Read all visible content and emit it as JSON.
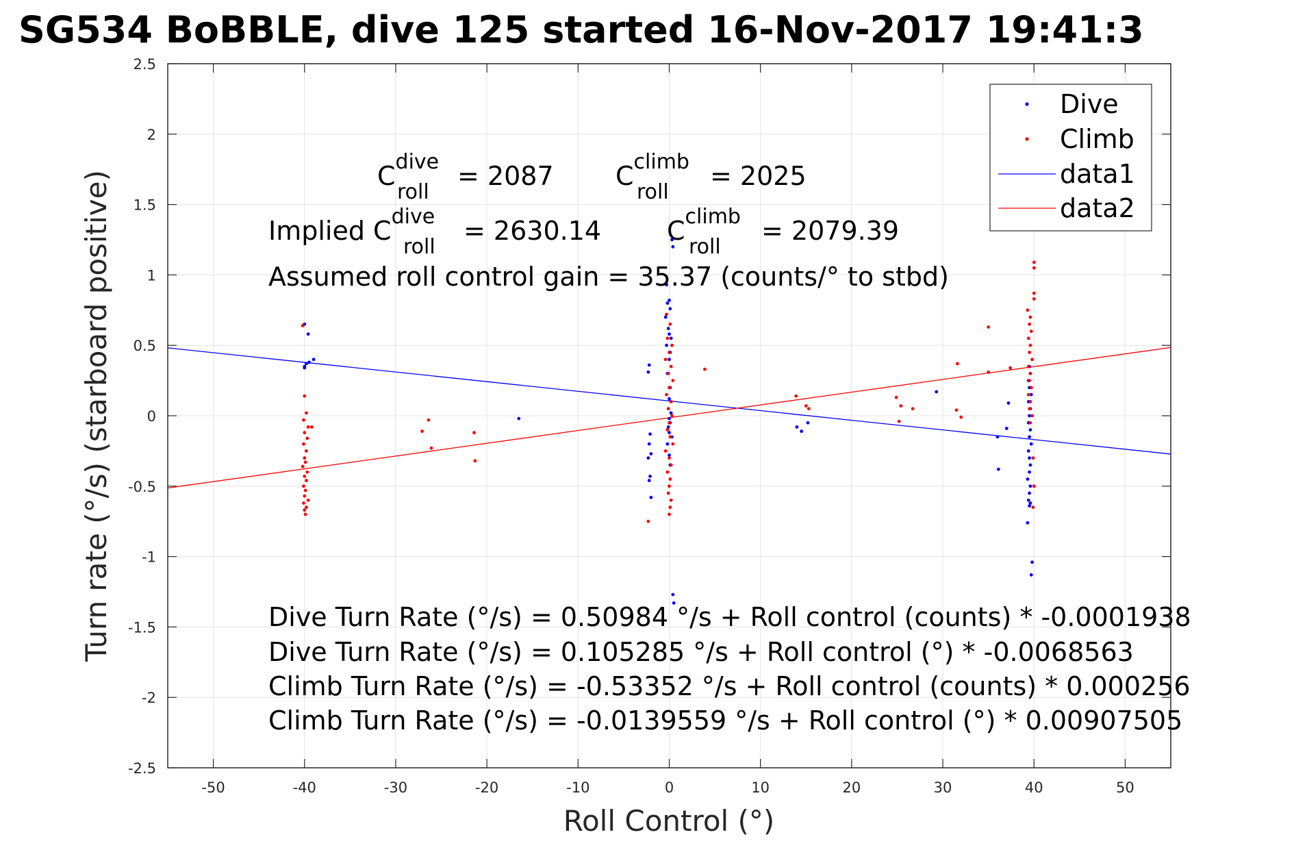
{
  "chart_data": {
    "type": "scatter",
    "title": "SG534 BoBBLE, dive 125 started 16-Nov-2017 19:41:3",
    "xlabel": "Roll Control (°)",
    "ylabel": "Turn rate (°/s) (starboard positive)",
    "xlim": [
      -55,
      55
    ],
    "ylim": [
      -2.5,
      2.5
    ],
    "xticks": [
      -50,
      -40,
      -30,
      -20,
      -10,
      0,
      10,
      20,
      30,
      40,
      50
    ],
    "yticks": [
      -2.5,
      -2,
      -1.5,
      -1,
      -0.5,
      0,
      0.5,
      1,
      1.5,
      2,
      2.5
    ],
    "xtick_labels": [
      "-50",
      "-40",
      "-30",
      "-20",
      "-10",
      "0",
      "10",
      "20",
      "30",
      "40",
      "50"
    ],
    "ytick_labels": [
      "-2.5",
      "-2",
      "-1.5",
      "-1",
      "-0.5",
      "0",
      "0.5",
      "1",
      "1.5",
      "2",
      "2.5"
    ],
    "grid": true,
    "legend_position": "top-right",
    "colors": {
      "dive": "#0000ff",
      "climb": "#ff0000"
    },
    "series": [
      {
        "name": "Dive",
        "kind": "points",
        "color": "#0000ff",
        "points": [
          [
            -40,
            0.65
          ],
          [
            -39.6,
            0.58
          ],
          [
            -40,
            0.35
          ],
          [
            -39.8,
            0.37
          ],
          [
            -39.5,
            0.38
          ],
          [
            -39,
            0.4
          ],
          [
            -40,
            0.34
          ],
          [
            -16.5,
            -0.02
          ],
          [
            -2.2,
            0.36
          ],
          [
            -2.3,
            0.31
          ],
          [
            -2.1,
            -0.13
          ],
          [
            -2.2,
            -0.2
          ],
          [
            -2.0,
            -0.27
          ],
          [
            -2.3,
            -0.3
          ],
          [
            -2.1,
            -0.43
          ],
          [
            -2.2,
            -0.46
          ],
          [
            -2.0,
            -0.58
          ],
          [
            -0.3,
            0.93
          ],
          [
            0.0,
            0.82
          ],
          [
            -0.2,
            0.8
          ],
          [
            0.1,
            0.76
          ],
          [
            -0.4,
            0.7
          ],
          [
            -0.1,
            0.62
          ],
          [
            0.0,
            0.58
          ],
          [
            0.2,
            0.55
          ],
          [
            -0.3,
            0.5
          ],
          [
            0.1,
            0.45
          ],
          [
            0.0,
            0.4
          ],
          [
            -0.2,
            0.3
          ],
          [
            0.1,
            0.2
          ],
          [
            0.0,
            0.12
          ],
          [
            -0.1,
            0.05
          ],
          [
            0.2,
            0.02
          ],
          [
            0.0,
            -0.02
          ],
          [
            0.1,
            -0.05
          ],
          [
            -0.1,
            -0.08
          ],
          [
            0.0,
            -0.12
          ],
          [
            0.3,
            -0.15
          ],
          [
            -0.2,
            -0.2
          ],
          [
            0.0,
            -0.28
          ],
          [
            0.1,
            -0.35
          ],
          [
            0.4,
            1.2
          ],
          [
            0.3,
            1.25
          ],
          [
            0.4,
            -1.27
          ],
          [
            0.5,
            -1.33
          ],
          [
            14,
            -0.08
          ],
          [
            14.5,
            -0.11
          ],
          [
            15.2,
            -0.05
          ],
          [
            29.3,
            0.17
          ],
          [
            36,
            -0.15
          ],
          [
            36.1,
            -0.38
          ],
          [
            37.2,
            0.09
          ],
          [
            37.0,
            -0.09
          ],
          [
            39.5,
            0.35
          ],
          [
            39.6,
            0.3
          ],
          [
            39.4,
            0.25
          ],
          [
            39.5,
            0.2
          ],
          [
            39.7,
            0.15
          ],
          [
            39.4,
            0.1
          ],
          [
            39.6,
            0.05
          ],
          [
            39.5,
            0.0
          ],
          [
            39.4,
            -0.05
          ],
          [
            39.6,
            -0.1
          ],
          [
            39.5,
            -0.15
          ],
          [
            39.7,
            -0.2
          ],
          [
            39.4,
            -0.25
          ],
          [
            39.5,
            -0.3
          ],
          [
            39.6,
            -0.35
          ],
          [
            39.5,
            -0.4
          ],
          [
            39.3,
            -0.45
          ],
          [
            39.6,
            -0.5
          ],
          [
            39.5,
            -0.55
          ],
          [
            39.4,
            -0.6
          ],
          [
            39.6,
            -0.62
          ],
          [
            39.5,
            -0.64
          ],
          [
            39.3,
            -0.76
          ],
          [
            39.8,
            -1.04
          ],
          [
            39.7,
            -1.13
          ]
        ]
      },
      {
        "name": "Climb",
        "kind": "points",
        "color": "#ff0000",
        "points": [
          [
            -40.2,
            0.64
          ],
          [
            -40.0,
            0.14
          ],
          [
            -39.8,
            0.02
          ],
          [
            -40.1,
            -0.03
          ],
          [
            -39.6,
            -0.08
          ],
          [
            -39.2,
            -0.08
          ],
          [
            -40.0,
            -0.12
          ],
          [
            -39.7,
            -0.16
          ],
          [
            -40.1,
            -0.2
          ],
          [
            -39.8,
            -0.25
          ],
          [
            -40.0,
            -0.3
          ],
          [
            -39.9,
            -0.33
          ],
          [
            -40.2,
            -0.36
          ],
          [
            -39.7,
            -0.4
          ],
          [
            -40.0,
            -0.43
          ],
          [
            -39.8,
            -0.46
          ],
          [
            -40.1,
            -0.5
          ],
          [
            -39.9,
            -0.53
          ],
          [
            -40.0,
            -0.57
          ],
          [
            -39.6,
            -0.6
          ],
          [
            -40.1,
            -0.62
          ],
          [
            -39.8,
            -0.65
          ],
          [
            -40.0,
            -0.67
          ],
          [
            -39.9,
            -0.7
          ],
          [
            -27.1,
            -0.11
          ],
          [
            -26.4,
            -0.03
          ],
          [
            -26.1,
            -0.23
          ],
          [
            -21.4,
            -0.12
          ],
          [
            -21.3,
            -0.32
          ],
          [
            -2.3,
            -0.75
          ],
          [
            -0.3,
            0.72
          ],
          [
            0.1,
            0.65
          ],
          [
            -0.2,
            0.55
          ],
          [
            0.3,
            0.5
          ],
          [
            0.0,
            0.45
          ],
          [
            -0.4,
            0.4
          ],
          [
            0.2,
            0.35
          ],
          [
            -0.1,
            0.3
          ],
          [
            0.4,
            0.25
          ],
          [
            0.0,
            0.2
          ],
          [
            -0.3,
            0.15
          ],
          [
            0.2,
            0.1
          ],
          [
            -0.1,
            0.05
          ],
          [
            0.3,
            0.0
          ],
          [
            0.0,
            -0.05
          ],
          [
            -0.2,
            -0.1
          ],
          [
            0.1,
            -0.15
          ],
          [
            0.4,
            -0.2
          ],
          [
            -0.4,
            -0.25
          ],
          [
            0.0,
            -0.3
          ],
          [
            0.2,
            -0.35
          ],
          [
            -0.2,
            -0.4
          ],
          [
            0.1,
            -0.45
          ],
          [
            0.0,
            -0.5
          ],
          [
            -0.1,
            -0.55
          ],
          [
            0.2,
            -0.6
          ],
          [
            0.1,
            -0.65
          ],
          [
            0.0,
            -0.7
          ],
          [
            3.9,
            0.33
          ],
          [
            13.9,
            0.14
          ],
          [
            15.0,
            0.07
          ],
          [
            15.3,
            0.05
          ],
          [
            24.9,
            0.13
          ],
          [
            25.4,
            0.07
          ],
          [
            25.2,
            -0.04
          ],
          [
            26.7,
            0.05
          ],
          [
            31.6,
            0.37
          ],
          [
            31.5,
            0.04
          ],
          [
            32.0,
            -0.01
          ],
          [
            35.0,
            0.31
          ],
          [
            35.0,
            0.63
          ],
          [
            37.4,
            0.34
          ],
          [
            39.3,
            0.75
          ],
          [
            39.6,
            0.7
          ],
          [
            39.5,
            0.65
          ],
          [
            39.7,
            0.6
          ],
          [
            39.4,
            0.55
          ],
          [
            39.6,
            0.5
          ],
          [
            39.5,
            0.45
          ],
          [
            39.8,
            0.4
          ],
          [
            39.4,
            0.35
          ],
          [
            39.6,
            0.3
          ],
          [
            39.5,
            0.25
          ],
          [
            39.7,
            0.2
          ],
          [
            39.4,
            0.15
          ],
          [
            39.6,
            0.1
          ],
          [
            39.5,
            0.05
          ],
          [
            39.8,
            0.0
          ],
          [
            39.6,
            -0.05
          ],
          [
            39.9,
            -0.3
          ],
          [
            40.0,
            -0.5
          ],
          [
            39.9,
            -0.65
          ],
          [
            40.0,
            1.09
          ],
          [
            40.0,
            1.05
          ],
          [
            40.0,
            0.87
          ],
          [
            40.0,
            0.83
          ]
        ]
      },
      {
        "name": "data1",
        "kind": "line",
        "color": "#0000ff",
        "x": [
          -55,
          55
        ],
        "y": [
          0.482,
          -0.272
        ]
      },
      {
        "name": "data2",
        "kind": "line",
        "color": "#ff0000",
        "x": [
          -55,
          55
        ],
        "y": [
          -0.513,
          0.485
        ]
      }
    ],
    "annotations": {
      "c_roll_dive_prefix": "C",
      "c_roll_dive_sup": "dive",
      "c_roll_dive_sub": "roll",
      "c_roll_dive_value": "= 2087",
      "c_roll_climb_prefix": "C",
      "c_roll_climb_sup": "climb",
      "c_roll_climb_sub": "roll",
      "c_roll_climb_value": "= 2025",
      "implied_prefix": "Implied C",
      "implied_dive_sup": "dive",
      "implied_dive_sub": "roll",
      "implied_dive_value": "= 2630.14",
      "implied_climb_prefix": "C",
      "implied_climb_sup": "climb",
      "implied_climb_sub": "roll",
      "implied_climb_value": "= 2079.39",
      "gain_line": "Assumed roll control gain = 35.37 (counts/° to stbd)",
      "eq1": "Dive Turn Rate (°/s) = 0.50984 °/s + Roll control (counts) * -0.0001938",
      "eq2": "Dive Turn Rate (°/s) = 0.105285 °/s + Roll control (°) * -0.0068563",
      "eq3": "Climb Turn Rate (°/s) = -0.53352 °/s + Roll control (counts) * 0.000256",
      "eq4": "Climb Turn Rate (°/s) = -0.0139559 °/s + Roll control (°) * 0.00907505"
    }
  }
}
